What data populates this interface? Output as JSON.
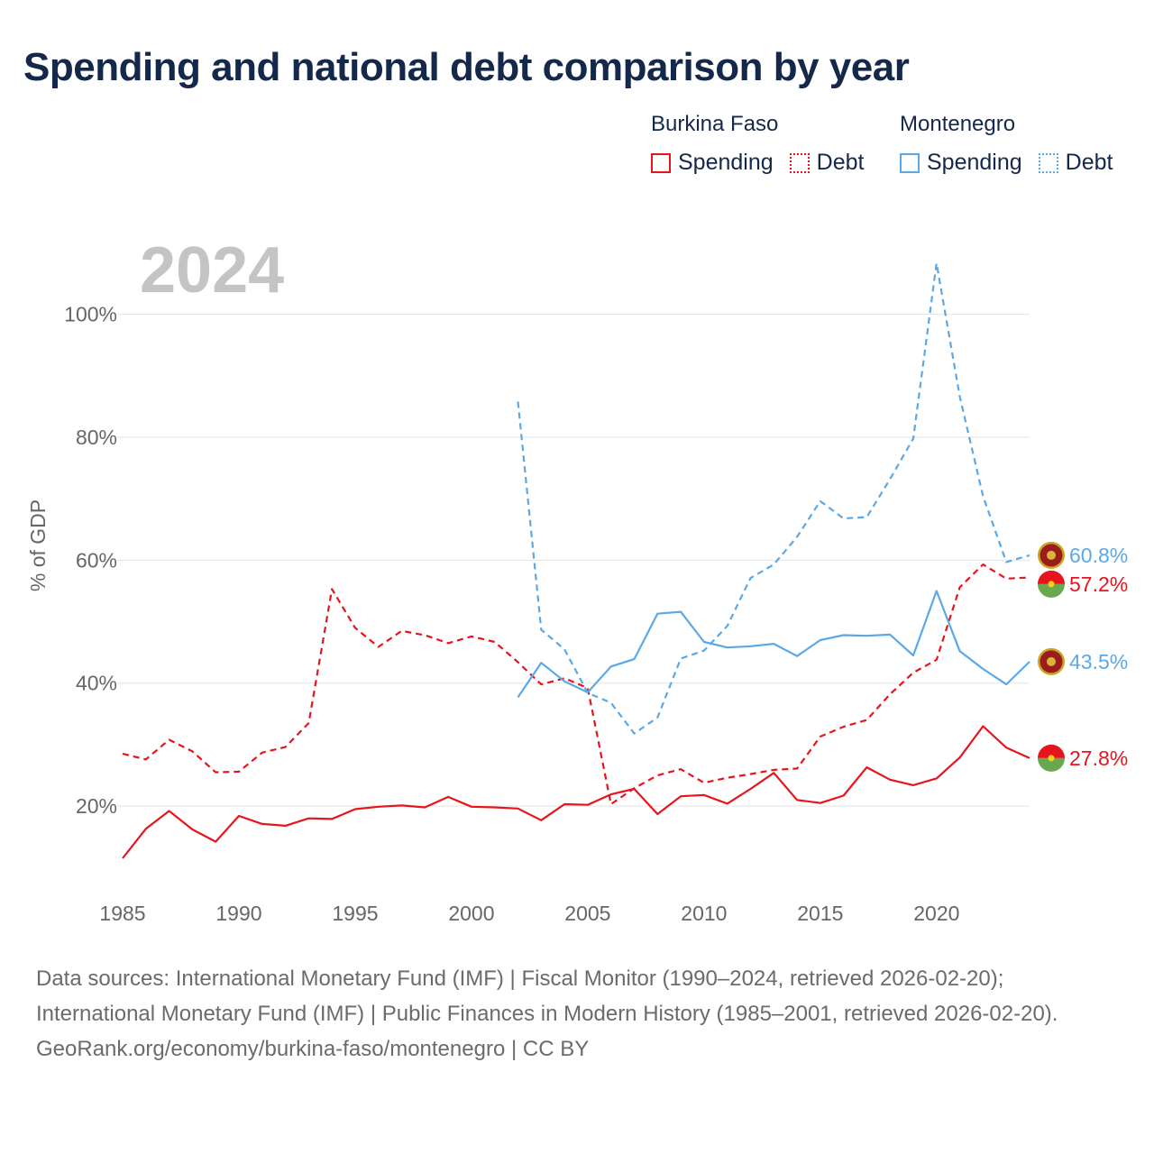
{
  "title": "Spending and national debt comparison by year",
  "legend": {
    "groups": [
      {
        "name": "Burkina Faso",
        "items": [
          "Spending",
          "Debt"
        ]
      },
      {
        "name": "Montenegro",
        "items": [
          "Spending",
          "Debt"
        ]
      }
    ]
  },
  "footer": {
    "sources": "Data sources: International Monetary Fund (IMF) | Fiscal Monitor (1990–2024, retrieved 2026-02-20); International Monetary Fund (IMF) | Public Finances in Modern History (1985–2001, retrieved 2026-02-20).",
    "attribution": "GeoRank.org/economy/burkina-faso/montenegro | CC BY"
  },
  "chart_data": {
    "type": "line",
    "title": "Spending and national debt comparison by year",
    "year_label": "2024",
    "ylabel": "% of GDP",
    "xlabel": "",
    "xlim": [
      1985,
      2024
    ],
    "ylim": [
      3,
      113
    ],
    "x_ticks": [
      1985,
      1990,
      1995,
      2000,
      2005,
      2010,
      2015,
      2020
    ],
    "y_ticks": [
      20,
      40,
      60,
      80,
      100
    ],
    "y_tick_labels": [
      "20%",
      "40%",
      "60%",
      "80%",
      "100%"
    ],
    "grid": true,
    "colors": {
      "burkina_faso": "#e8141b",
      "montenegro": "#5ba8e6"
    },
    "series": [
      {
        "name": "Burkina Faso Spending",
        "country": "burkina_faso",
        "style": "solid",
        "end_label": "27.8%",
        "x": [
          1985,
          1986,
          1987,
          1988,
          1989,
          1990,
          1991,
          1992,
          1993,
          1994,
          1995,
          1996,
          1997,
          1998,
          1999,
          2000,
          2001,
          2002,
          2003,
          2004,
          2005,
          2006,
          2007,
          2008,
          2009,
          2010,
          2011,
          2012,
          2013,
          2014,
          2015,
          2016,
          2017,
          2018,
          2019,
          2020,
          2021,
          2022,
          2023,
          2024
        ],
        "values": [
          11.5,
          16.3,
          19.2,
          16.2,
          14.2,
          18.4,
          17.1,
          16.8,
          18.0,
          17.9,
          19.5,
          19.9,
          20.1,
          19.8,
          21.5,
          19.9,
          19.8,
          19.6,
          17.7,
          20.3,
          20.2,
          21.9,
          22.8,
          18.7,
          21.6,
          21.8,
          20.4,
          22.8,
          25.4,
          21.0,
          20.5,
          21.7,
          26.3,
          24.3,
          23.4,
          24.5,
          27.9,
          33.0,
          29.5,
          27.8
        ]
      },
      {
        "name": "Burkina Faso Debt",
        "country": "burkina_faso",
        "style": "dashed",
        "end_label": "57.2%",
        "x": [
          1985,
          1986,
          1987,
          1988,
          1989,
          1990,
          1991,
          1992,
          1993,
          1994,
          1995,
          1996,
          1997,
          1998,
          1999,
          2000,
          2001,
          2002,
          2003,
          2004,
          2005,
          2006,
          2007,
          2008,
          2009,
          2010,
          2011,
          2012,
          2013,
          2014,
          2015,
          2016,
          2017,
          2018,
          2019,
          2020,
          2021,
          2022,
          2023,
          2024
        ],
        "values": [
          28.5,
          27.6,
          30.8,
          28.9,
          25.5,
          25.6,
          28.7,
          29.6,
          33.5,
          55.3,
          49.0,
          45.9,
          48.5,
          47.8,
          46.5,
          47.6,
          46.7,
          43.4,
          39.8,
          40.8,
          39.2,
          20.3,
          22.9,
          25.0,
          26.0,
          23.8,
          24.6,
          25.2,
          25.9,
          26.1,
          31.3,
          32.9,
          34.0,
          38.2,
          41.7,
          43.8,
          55.6,
          59.3,
          57.0,
          57.2
        ]
      },
      {
        "name": "Montenegro Spending",
        "country": "montenegro",
        "style": "solid",
        "end_label": "43.5%",
        "x": [
          2002,
          2003,
          2004,
          2005,
          2006,
          2007,
          2008,
          2009,
          2010,
          2011,
          2012,
          2013,
          2014,
          2015,
          2016,
          2017,
          2018,
          2019,
          2020,
          2021,
          2022,
          2023,
          2024
        ],
        "values": [
          37.7,
          43.3,
          40.3,
          38.5,
          42.7,
          43.9,
          51.3,
          51.6,
          46.7,
          45.8,
          46.0,
          46.4,
          44.4,
          47.0,
          47.8,
          47.7,
          47.9,
          44.5,
          55.0,
          45.2,
          42.3,
          39.8,
          43.5
        ]
      },
      {
        "name": "Montenegro Debt",
        "country": "montenegro",
        "style": "dashed",
        "end_label": "60.8%",
        "x": [
          2002,
          2003,
          2004,
          2005,
          2006,
          2007,
          2008,
          2009,
          2010,
          2011,
          2012,
          2013,
          2014,
          2015,
          2016,
          2017,
          2018,
          2019,
          2020,
          2021,
          2022,
          2023,
          2024
        ],
        "values": [
          85.8,
          48.7,
          45.5,
          38.4,
          36.8,
          31.8,
          34.4,
          44.0,
          45.3,
          49.3,
          57.1,
          59.3,
          63.8,
          69.6,
          66.8,
          67.0,
          73.2,
          79.8,
          108.3,
          86.6,
          70.4,
          59.7,
          60.8
        ]
      }
    ]
  }
}
